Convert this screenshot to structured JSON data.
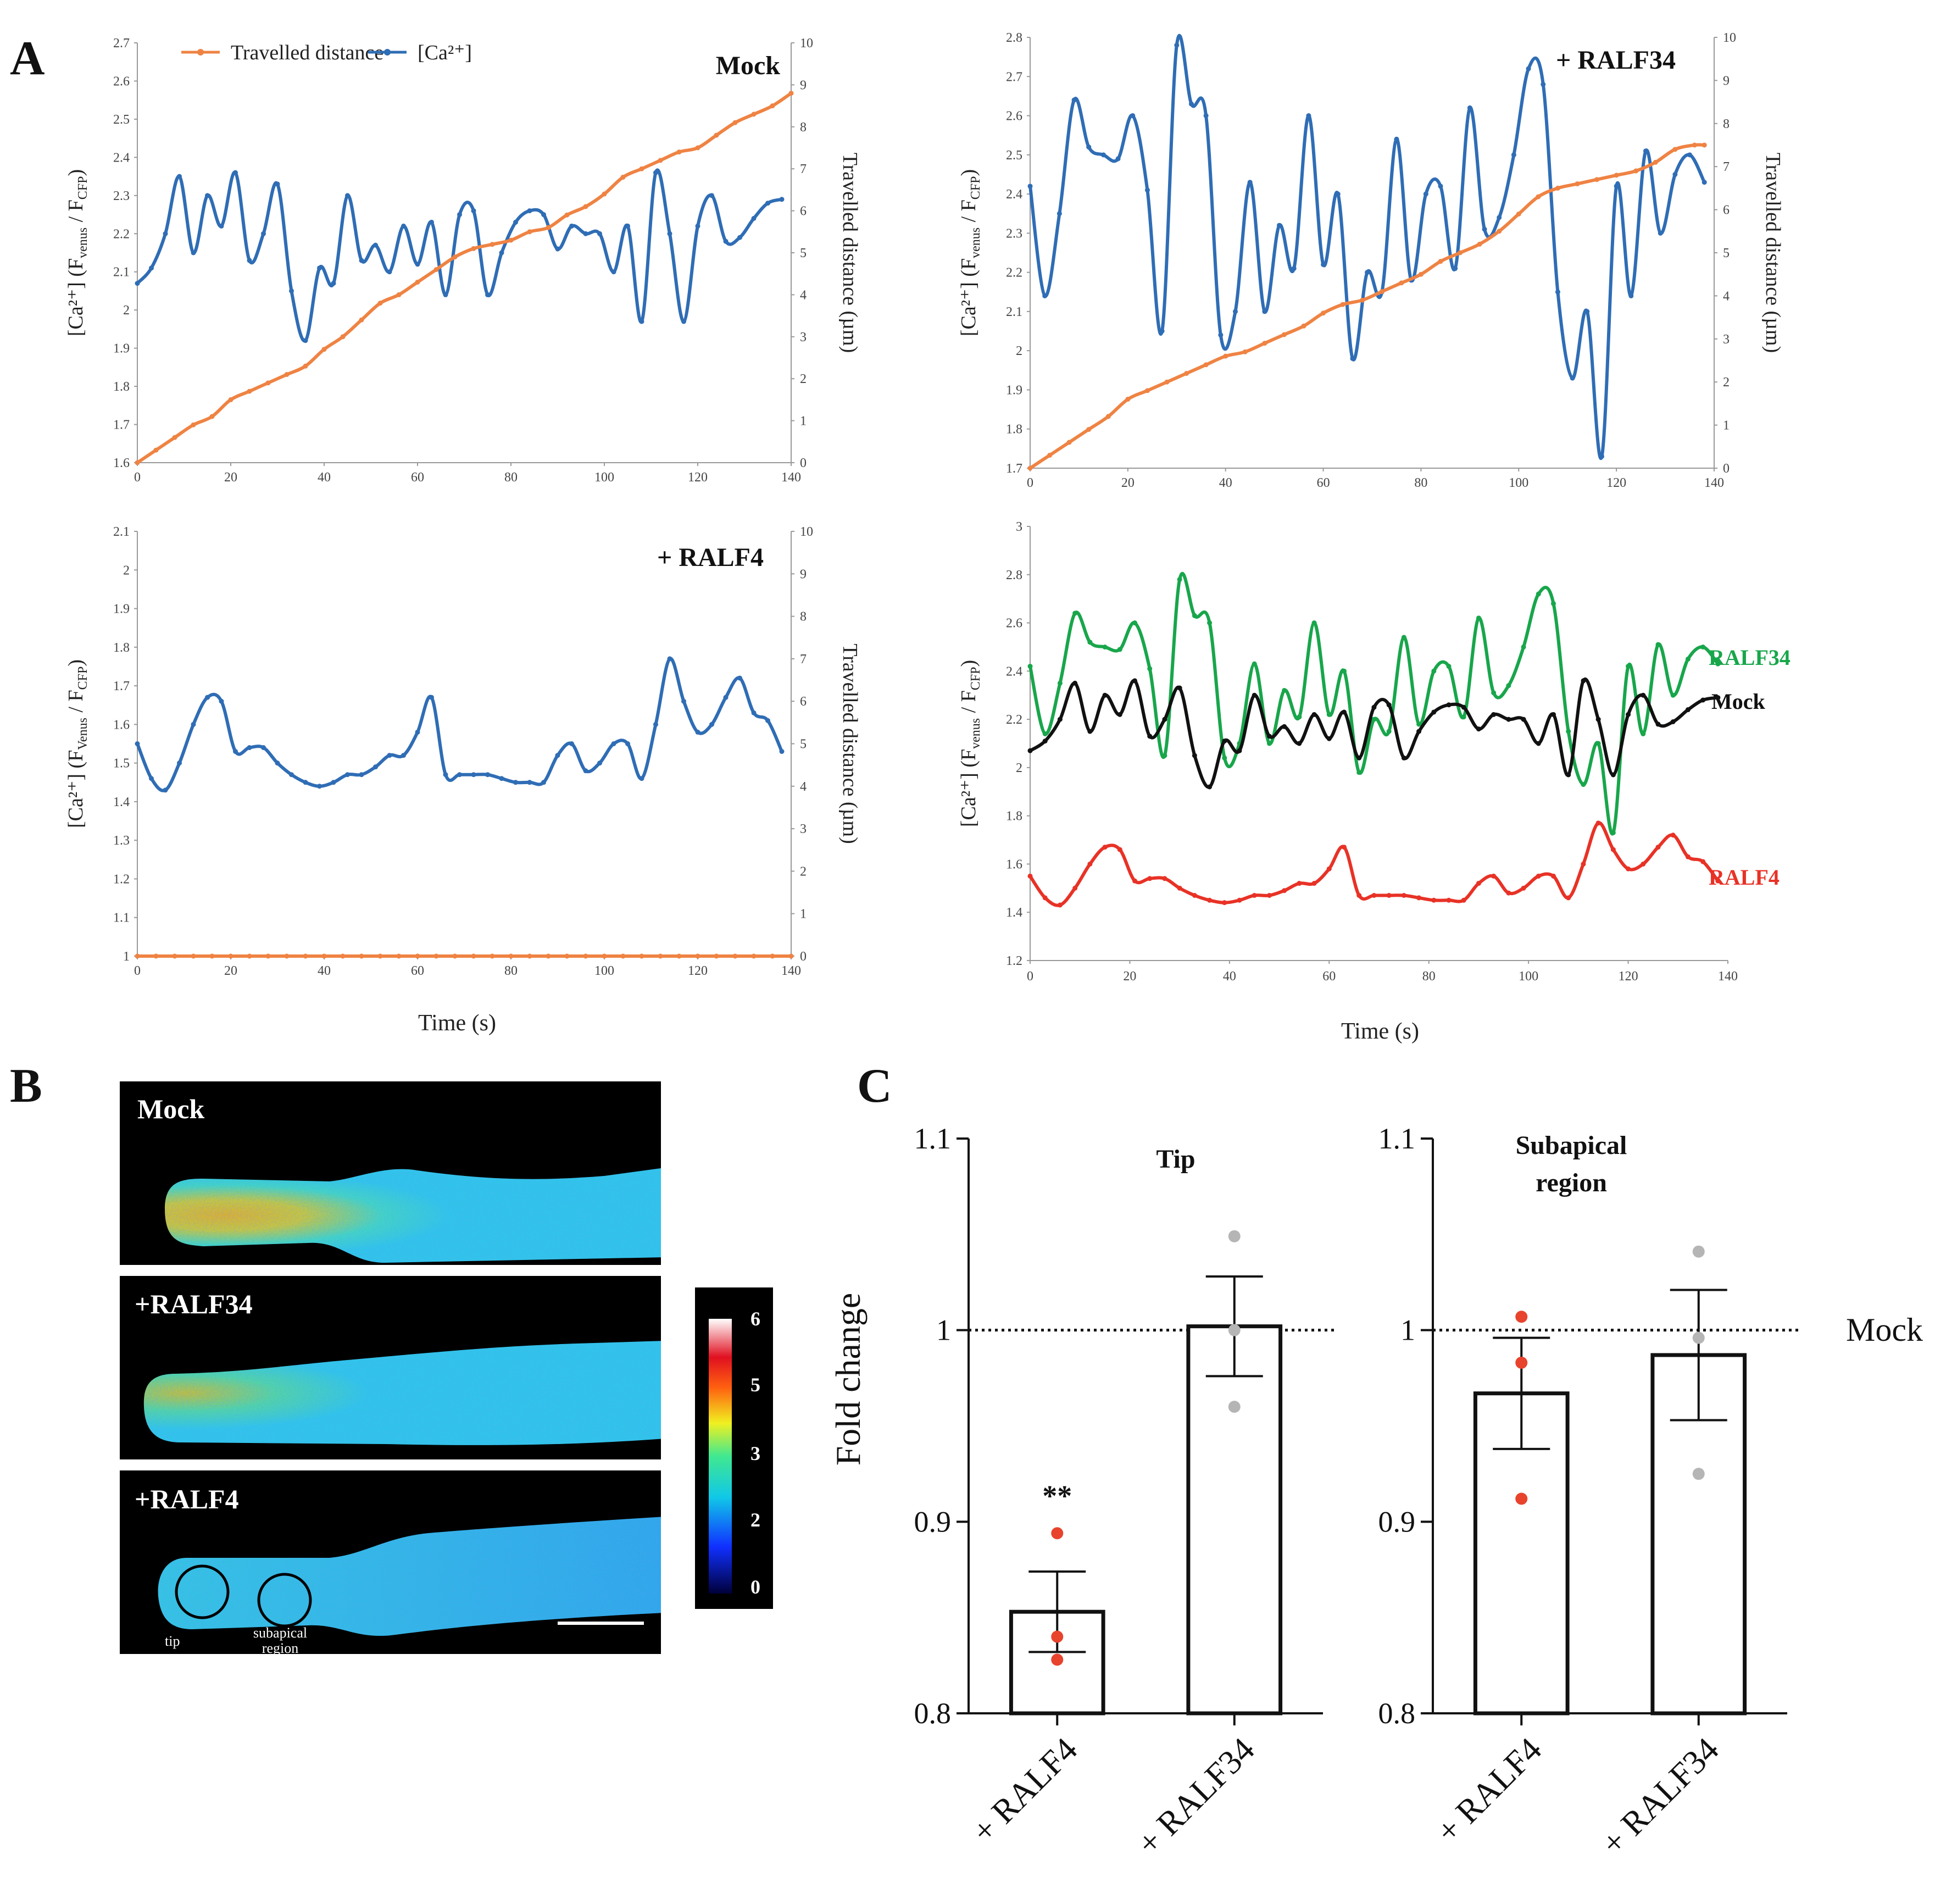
{
  "panels": {
    "a": "A",
    "b": "B",
    "c": "C"
  },
  "colors": {
    "travel": "#ef8343",
    "calcium": "#2f6db5",
    "ralf34": "#18a64b",
    "mock": "#111111",
    "ralf4": "#e83226",
    "ralf4_dot": "#e8432c",
    "ralf34_dot": "#b5b5b5"
  },
  "legend": {
    "travelled_line1": "Travelled distance",
    "travelled_line2": "",
    "calcium": "[Ca²⁺]"
  },
  "labels": {
    "time": "Time (s)",
    "travelled_axis": "Travelled distance (µm)",
    "ylabel_ca": "[Ca²⁺] (F",
    "ylabel_sub_venus": "venus",
    "ylabel_sub_Venus": "Venus",
    "ylabel_mid": " / F",
    "ylabel_sub_cfp": "CFP",
    "ylabel_end": ")"
  },
  "chart_data": [
    {
      "id": "mock",
      "type": "line",
      "title": "Mock",
      "x_ticks": [
        0,
        20,
        40,
        60,
        80,
        100,
        120,
        140
      ],
      "y_ticks": [
        "1.6",
        "1.7",
        "1.8",
        "1.9",
        "2",
        "2.1",
        "2.2",
        "2.3",
        "2.4",
        "2.5",
        "2.6",
        "2.7"
      ],
      "y2_ticks": [
        "0",
        "1",
        "2",
        "3",
        "4",
        "5",
        "6",
        "7",
        "8",
        "9",
        "10"
      ],
      "ylim": [
        1.6,
        2.7
      ],
      "y2lim": [
        0,
        10
      ],
      "xlim": [
        0,
        140
      ],
      "series": [
        {
          "name": "[Ca²⁺]",
          "axis": "left",
          "color": "calcium",
          "x": [
            0,
            3,
            6,
            9,
            12,
            15,
            18,
            21,
            24,
            27,
            30,
            33,
            36,
            39,
            42,
            45,
            48,
            51,
            54,
            57,
            60,
            63,
            66,
            69,
            72,
            75,
            78,
            81,
            84,
            87,
            90,
            93,
            96,
            99,
            102,
            105,
            108,
            111,
            114,
            117,
            120,
            123,
            126,
            129,
            132,
            135,
            138
          ],
          "y": [
            2.07,
            2.11,
            2.2,
            2.35,
            2.15,
            2.3,
            2.22,
            2.36,
            2.13,
            2.2,
            2.33,
            2.05,
            1.92,
            2.11,
            2.07,
            2.3,
            2.13,
            2.17,
            2.1,
            2.22,
            2.12,
            2.23,
            2.04,
            2.25,
            2.26,
            2.04,
            2.15,
            2.23,
            2.26,
            2.25,
            2.16,
            2.22,
            2.2,
            2.2,
            2.1,
            2.22,
            1.97,
            2.36,
            2.2,
            1.97,
            2.22,
            2.3,
            2.18,
            2.19,
            2.24,
            2.28,
            2.29
          ]
        },
        {
          "name": "Travelled distance",
          "axis": "right",
          "color": "travel",
          "x": [
            0,
            4,
            8,
            12,
            16,
            20,
            24,
            28,
            32,
            36,
            40,
            44,
            48,
            52,
            56,
            60,
            64,
            68,
            72,
            76,
            80,
            84,
            88,
            92,
            96,
            100,
            104,
            108,
            112,
            116,
            120,
            124,
            128,
            132,
            136,
            140
          ],
          "y": [
            0,
            0.3,
            0.6,
            0.9,
            1.1,
            1.5,
            1.7,
            1.9,
            2.1,
            2.3,
            2.7,
            3.0,
            3.4,
            3.8,
            4.0,
            4.3,
            4.6,
            4.9,
            5.1,
            5.2,
            5.3,
            5.5,
            5.6,
            5.9,
            6.1,
            6.4,
            6.8,
            7.0,
            7.2,
            7.4,
            7.5,
            7.8,
            8.1,
            8.3,
            8.5,
            8.8
          ]
        }
      ]
    },
    {
      "id": "ralf34",
      "type": "line",
      "title": "+ RALF34",
      "x_ticks": [
        0,
        20,
        40,
        60,
        80,
        100,
        120,
        140
      ],
      "y_ticks": [
        "1.7",
        "1.8",
        "1.9",
        "2",
        "2.1",
        "2.2",
        "2.3",
        "2.4",
        "2.5",
        "2.6",
        "2.7",
        "2.8"
      ],
      "y2_ticks": [
        "0",
        "1",
        "2",
        "3",
        "4",
        "5",
        "6",
        "7",
        "8",
        "9",
        "10"
      ],
      "ylim": [
        1.7,
        2.8
      ],
      "y2lim": [
        0,
        10
      ],
      "xlim": [
        0,
        140
      ],
      "series": [
        {
          "name": "[Ca²⁺]",
          "axis": "left",
          "color": "calcium",
          "x": [
            0,
            3,
            6,
            9,
            12,
            15,
            18,
            21,
            24,
            27,
            30,
            33,
            36,
            39,
            42,
            45,
            48,
            51,
            54,
            57,
            60,
            63,
            66,
            69,
            72,
            75,
            78,
            81,
            84,
            87,
            90,
            93,
            96,
            99,
            102,
            105,
            108,
            111,
            114,
            117,
            120,
            123,
            126,
            129,
            132,
            135,
            138
          ],
          "y": [
            2.42,
            2.14,
            2.35,
            2.64,
            2.52,
            2.5,
            2.49,
            2.6,
            2.41,
            2.05,
            2.78,
            2.63,
            2.6,
            2.04,
            2.1,
            2.43,
            2.1,
            2.32,
            2.21,
            2.6,
            2.22,
            2.4,
            1.98,
            2.2,
            2.15,
            2.54,
            2.18,
            2.4,
            2.42,
            2.21,
            2.62,
            2.31,
            2.34,
            2.5,
            2.72,
            2.68,
            2.15,
            1.93,
            2.1,
            1.73,
            2.42,
            2.14,
            2.51,
            2.3,
            2.45,
            2.5,
            2.43
          ]
        },
        {
          "name": "Travelled distance",
          "axis": "right",
          "color": "travel",
          "x": [
            0,
            4,
            8,
            12,
            16,
            20,
            24,
            28,
            32,
            36,
            40,
            44,
            48,
            52,
            56,
            60,
            64,
            68,
            72,
            76,
            80,
            84,
            88,
            92,
            96,
            100,
            104,
            108,
            112,
            116,
            120,
            124,
            128,
            132,
            136,
            138
          ],
          "y": [
            0,
            0.3,
            0.6,
            0.9,
            1.2,
            1.6,
            1.8,
            2.0,
            2.2,
            2.4,
            2.6,
            2.7,
            2.9,
            3.1,
            3.3,
            3.6,
            3.8,
            3.9,
            4.1,
            4.3,
            4.5,
            4.8,
            5.0,
            5.2,
            5.5,
            5.9,
            6.3,
            6.5,
            6.6,
            6.7,
            6.8,
            6.9,
            7.1,
            7.4,
            7.5,
            7.5
          ]
        }
      ]
    },
    {
      "id": "ralf4",
      "type": "line",
      "title": "+ RALF4",
      "x_ticks": [
        0,
        20,
        40,
        60,
        80,
        100,
        120,
        140
      ],
      "y_ticks": [
        "1",
        "1.1",
        "1.2",
        "1.3",
        "1.4",
        "1.5",
        "1.6",
        "1.7",
        "1.8",
        "1.9",
        "2",
        "2.1"
      ],
      "y2_ticks": [
        "0",
        "1",
        "2",
        "3",
        "4",
        "5",
        "6",
        "7",
        "8",
        "9",
        "10"
      ],
      "ylim": [
        1.0,
        2.1
      ],
      "y2lim": [
        0,
        10
      ],
      "xlim": [
        0,
        140
      ],
      "series": [
        {
          "name": "[Ca²⁺]",
          "axis": "left",
          "color": "calcium",
          "x": [
            0,
            3,
            6,
            9,
            12,
            15,
            18,
            21,
            24,
            27,
            30,
            33,
            36,
            39,
            42,
            45,
            48,
            51,
            54,
            57,
            60,
            63,
            66,
            69,
            72,
            75,
            78,
            81,
            84,
            87,
            90,
            93,
            96,
            99,
            102,
            105,
            108,
            111,
            114,
            117,
            120,
            123,
            126,
            129,
            132,
            135,
            138
          ],
          "y": [
            1.55,
            1.46,
            1.43,
            1.5,
            1.6,
            1.67,
            1.66,
            1.53,
            1.54,
            1.54,
            1.5,
            1.47,
            1.45,
            1.44,
            1.45,
            1.47,
            1.47,
            1.49,
            1.52,
            1.52,
            1.58,
            1.67,
            1.47,
            1.47,
            1.47,
            1.47,
            1.46,
            1.45,
            1.45,
            1.45,
            1.52,
            1.55,
            1.48,
            1.5,
            1.55,
            1.55,
            1.46,
            1.6,
            1.77,
            1.66,
            1.58,
            1.6,
            1.67,
            1.72,
            1.63,
            1.61,
            1.53
          ]
        },
        {
          "name": "Travelled distance",
          "axis": "right",
          "color": "travel",
          "x": [
            0,
            4,
            8,
            12,
            16,
            20,
            24,
            28,
            32,
            36,
            40,
            44,
            48,
            52,
            56,
            60,
            64,
            68,
            72,
            76,
            80,
            84,
            88,
            92,
            96,
            100,
            104,
            108,
            112,
            116,
            120,
            124,
            128,
            132,
            136,
            140
          ],
          "y": [
            0,
            0,
            0,
            0,
            0,
            0,
            0,
            0,
            0,
            0,
            0,
            0,
            0,
            0,
            0,
            0,
            0,
            0,
            0,
            0,
            0,
            0,
            0,
            0,
            0,
            0,
            0,
            0,
            0,
            0,
            0,
            0,
            0,
            0,
            0,
            0
          ]
        }
      ]
    },
    {
      "id": "overlay",
      "type": "line",
      "title": "",
      "x_ticks": [
        0,
        20,
        40,
        60,
        80,
        100,
        120,
        140
      ],
      "y_ticks": [
        "1.2",
        "1.4",
        "1.6",
        "1.8",
        "2",
        "2.2",
        "2.4",
        "2.6",
        "2.8",
        "3"
      ],
      "ylim": [
        1.2,
        3.0
      ],
      "xlim": [
        0,
        140
      ],
      "series_labels": {
        "ralf34": "RALF34",
        "mock": "Mock",
        "ralf4": "RALF4"
      }
    },
    {
      "id": "tip",
      "type": "bar",
      "title": "Tip",
      "categories": [
        "+ RALF4",
        "+ RALF34"
      ],
      "values": [
        0.853,
        1.002
      ],
      "sem": [
        0.021,
        0.026
      ],
      "points": [
        [
          0.894,
          0.84,
          0.828
        ],
        [
          1.049,
          1.0,
          0.96
        ]
      ],
      "significance": [
        "**",
        ""
      ],
      "y_ticks": [
        "0.8",
        "0.9",
        "1",
        "1.1"
      ],
      "ylim": [
        0.8,
        1.1
      ],
      "ylabel": "Fold change",
      "reference": {
        "value": 1.0,
        "label": "Mock"
      }
    },
    {
      "id": "subapical",
      "type": "bar",
      "title_line1": "Subapical",
      "title_line2": "region",
      "categories": [
        "+ RALF4",
        "+ RALF34"
      ],
      "values": [
        0.967,
        0.987
      ],
      "sem": [
        0.029,
        0.034
      ],
      "points": [
        [
          1.007,
          0.983,
          0.912
        ],
        [
          1.041,
          0.996,
          0.925
        ]
      ],
      "y_ticks": [
        "0.8",
        "0.9",
        "1",
        "1.1"
      ],
      "ylim": [
        0.8,
        1.1
      ],
      "reference": {
        "value": 1.0,
        "label": "Mock"
      }
    }
  ],
  "images": {
    "mock": "Mock",
    "ralf34": "+RALF34",
    "ralf4": "+RALF4",
    "tip_label": "tip",
    "subapical_line1": "subapical",
    "subapical_line2": "region",
    "colorbar_ticks": [
      "6",
      "5",
      "3",
      "2",
      "0"
    ]
  }
}
